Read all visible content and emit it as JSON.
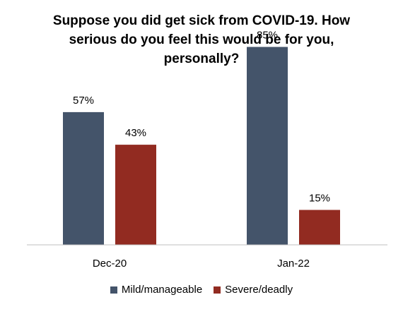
{
  "chart_data": {
    "type": "bar",
    "title_lines": [
      "Suppose you did get sick from COVID-19. How",
      "serious do you feel this would be for you,",
      "personally?"
    ],
    "categories": [
      "Dec-20",
      "Jan-22"
    ],
    "series": [
      {
        "name": "Mild/manageable",
        "values": [
          57,
          85
        ],
        "labels": [
          "57%",
          "85%"
        ],
        "color": "#44546A"
      },
      {
        "name": "Severe/deadly",
        "values": [
          43,
          15
        ],
        "labels": [
          "43%",
          "15%"
        ],
        "color": "#922B21"
      }
    ],
    "ylim": [
      0,
      100
    ],
    "grid": false,
    "legend_position": "bottom"
  }
}
